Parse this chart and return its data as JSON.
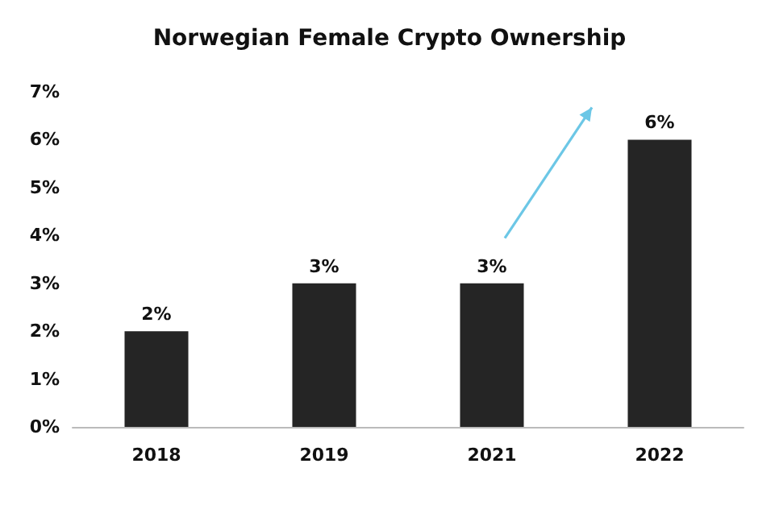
{
  "chart_data": {
    "type": "bar",
    "title": "Norwegian Female Crypto Ownership",
    "categories": [
      "2018",
      "2019",
      "2021",
      "2022"
    ],
    "values": [
      2,
      3,
      3,
      6
    ],
    "color": "#252525",
    "value_labels": [
      "2%",
      "3%",
      "3%",
      "6%"
    ],
    "ylim": [
      0,
      7
    ],
    "yticks": [
      {
        "value": 0,
        "label": "0%"
      },
      {
        "value": 1,
        "label": "1%"
      },
      {
        "value": 2,
        "label": "2%"
      },
      {
        "value": 3,
        "label": "3%"
      },
      {
        "value": 4,
        "label": "4%"
      },
      {
        "value": 5,
        "label": "5%"
      },
      {
        "value": 6,
        "label": "6%"
      },
      {
        "value": 7,
        "label": "7%"
      }
    ],
    "grid": false
  }
}
